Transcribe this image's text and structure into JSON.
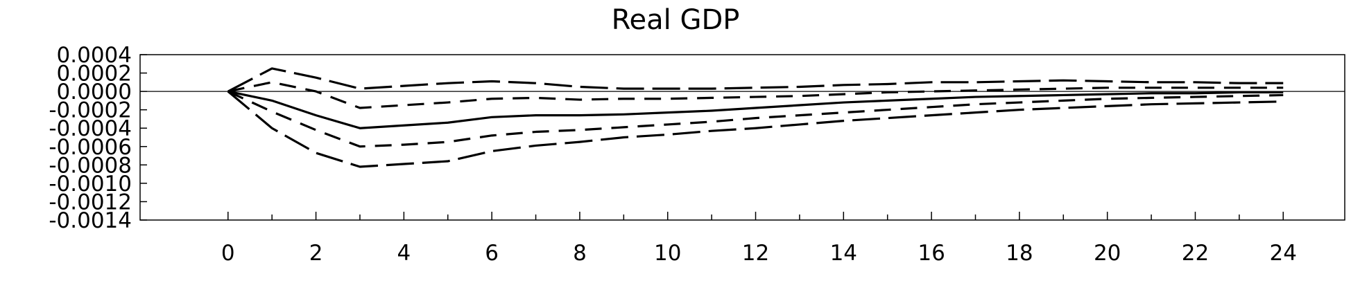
{
  "chart_data": {
    "type": "line",
    "title": "Real GDP",
    "xlabel": "",
    "ylabel": "",
    "xlim": [
      -2,
      25.4
    ],
    "ylim": [
      -0.0014,
      0.0004
    ],
    "x_ticks": [
      0,
      2,
      4,
      6,
      8,
      10,
      12,
      14,
      16,
      18,
      20,
      22,
      24
    ],
    "y_ticks": [
      0.0004,
      0.0002,
      0.0,
      -0.0002,
      -0.0004,
      -0.0006,
      -0.0008,
      -0.001,
      -0.0012,
      -0.0014
    ],
    "y_tick_labels": [
      "0.0004",
      "0.0002",
      "0.0000",
      "-0.0002",
      "-0.0004",
      "-0.0006",
      "-0.0008",
      "-0.0010",
      "-0.0012",
      "-0.0014"
    ],
    "grid": false,
    "zero_line": true,
    "x": [
      0,
      1,
      2,
      3,
      4,
      5,
      6,
      7,
      8,
      9,
      10,
      11,
      12,
      13,
      14,
      15,
      16,
      17,
      18,
      19,
      20,
      21,
      22,
      23,
      24
    ],
    "series": [
      {
        "style": "dashed-long",
        "values": [
          0.0,
          0.00025,
          0.00015,
          3e-05,
          6e-05,
          9e-05,
          0.00011,
          9e-05,
          5e-05,
          3e-05,
          3e-05,
          3e-05,
          4e-05,
          5e-05,
          7e-05,
          8e-05,
          0.0001,
          0.0001,
          0.00011,
          0.00012,
          0.00011,
          0.0001,
          0.0001,
          9e-05,
          9e-05
        ]
      },
      {
        "style": "dashed-short",
        "values": [
          0.0,
          0.0001,
          0.0,
          -0.00018,
          -0.00015,
          -0.00012,
          -8e-05,
          -7e-05,
          -9e-05,
          -8e-05,
          -8e-05,
          -7e-05,
          -6e-05,
          -5e-05,
          -3e-05,
          -1e-05,
          0.0,
          1e-05,
          2e-05,
          3e-05,
          4e-05,
          4e-05,
          4e-05,
          4e-05,
          4e-05
        ]
      },
      {
        "style": "solid",
        "values": [
          0.0,
          -0.0001,
          -0.00026,
          -0.0004,
          -0.00037,
          -0.00034,
          -0.00028,
          -0.00026,
          -0.00026,
          -0.00025,
          -0.00023,
          -0.00021,
          -0.00018,
          -0.00015,
          -0.00012,
          -0.0001,
          -8e-05,
          -6e-05,
          -5e-05,
          -4e-05,
          -3e-05,
          -2e-05,
          -2e-05,
          -1e-05,
          -1e-05
        ]
      },
      {
        "style": "dashed-short",
        "values": [
          0.0,
          -0.00022,
          -0.00042,
          -0.0006,
          -0.00058,
          -0.00055,
          -0.00048,
          -0.00044,
          -0.00042,
          -0.00039,
          -0.00036,
          -0.00033,
          -0.00029,
          -0.00026,
          -0.00023,
          -0.0002,
          -0.00017,
          -0.00014,
          -0.00012,
          -0.0001,
          -8e-05,
          -7e-05,
          -6e-05,
          -5e-05,
          -4e-05
        ]
      },
      {
        "style": "dashed-long",
        "values": [
          0.0,
          -0.0004,
          -0.00067,
          -0.00082,
          -0.00079,
          -0.00076,
          -0.00065,
          -0.00059,
          -0.00055,
          -0.0005,
          -0.00047,
          -0.00043,
          -0.0004,
          -0.00036,
          -0.00032,
          -0.00029,
          -0.00026,
          -0.00023,
          -0.0002,
          -0.00018,
          -0.00016,
          -0.00014,
          -0.00013,
          -0.00012,
          -0.00011
        ]
      }
    ]
  }
}
